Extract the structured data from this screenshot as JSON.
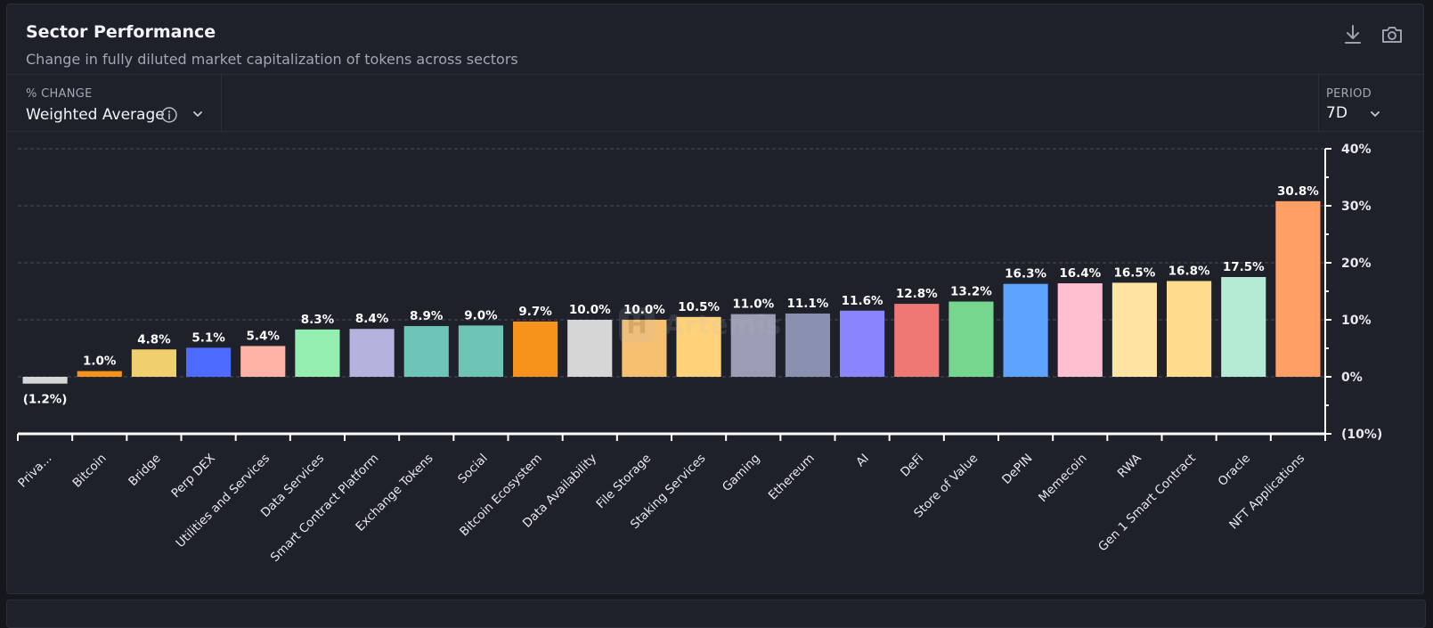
{
  "card": {
    "title": "Sector Performance",
    "subtitle": "Change in fully diluted market capitalization of tokens across sectors"
  },
  "icons": {
    "download": "download-icon",
    "camera": "camera-icon",
    "info": "info-icon",
    "chevron": "chevron-down-icon"
  },
  "controls": {
    "metric_label": "% CHANGE",
    "metric_value": "Weighted Average",
    "period_label": "PERIOD",
    "period_value": "7D"
  },
  "watermark": {
    "logo_letter": "H",
    "text": "Artemis"
  },
  "chart_data": {
    "type": "bar",
    "categories": [
      "Priva...",
      "Bitcoin",
      "Bridge",
      "Perp DEX",
      "Utilities and Services",
      "Data Services",
      "Smart Contract Platform",
      "Exchange Tokens",
      "Social",
      "Bitcoin Ecosystem",
      "Data Availability",
      "File Storage",
      "Staking Services",
      "Gaming",
      "Ethereum",
      "AI",
      "DeFi",
      "Store of Value",
      "DePIN",
      "Memecoin",
      "RWA",
      "Gen 1 Smart Contract",
      "Oracle",
      "NFT Applications"
    ],
    "values": [
      -1.2,
      1.0,
      4.8,
      5.1,
      5.4,
      8.3,
      8.4,
      8.9,
      9.0,
      9.7,
      10.0,
      10.0,
      10.5,
      11.0,
      11.1,
      11.6,
      12.8,
      13.2,
      16.3,
      16.4,
      16.5,
      16.8,
      17.5,
      30.8
    ],
    "data_labels": [
      "(1.2%)",
      "1.0%",
      "4.8%",
      "5.1%",
      "5.4%",
      "8.3%",
      "8.4%",
      "8.9%",
      "9.0%",
      "9.7%",
      "10.0%",
      "10.0%",
      "10.5%",
      "11.0%",
      "11.1%",
      "11.6%",
      "12.8%",
      "13.2%",
      "16.3%",
      "16.4%",
      "16.5%",
      "16.8%",
      "17.5%",
      "30.8%"
    ],
    "colors": [
      "#d6d6d6",
      "#f7931a",
      "#f0d06e",
      "#4d6bfe",
      "#ffb3a7",
      "#94eeb0",
      "#b3b3dd",
      "#6ec4b8",
      "#6ec4b4",
      "#f7931a",
      "#d6d6d6",
      "#f7c070",
      "#ffd27a",
      "#9b9db5",
      "#8990b0",
      "#8a85ff",
      "#ef7875",
      "#76d68e",
      "#5ea3ff",
      "#ffbfd0",
      "#ffe3a3",
      "#ffdb8e",
      "#b5ead5",
      "#ff9f65"
    ],
    "yticks": [
      40,
      30,
      20,
      10,
      0,
      -10
    ],
    "ytick_labels": [
      "40%",
      "30%",
      "20%",
      "10%",
      "0%",
      "(10%)"
    ],
    "ylim": [
      -10,
      40
    ],
    "xlabel": "",
    "ylabel": "",
    "grid": true,
    "y_axis_position": "right"
  }
}
